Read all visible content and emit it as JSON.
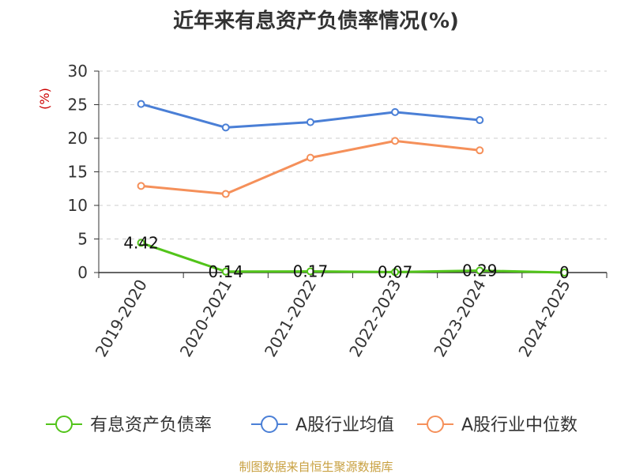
{
  "chart_data": {
    "type": "line",
    "title": "近年来有息资产负债率情况(%)",
    "ylabel": "(%)",
    "xlabel": "",
    "categories": [
      "2019-2020",
      "2020-2021",
      "2021-2022",
      "2022-2023",
      "2023-2024",
      "2024-2025"
    ],
    "ylim": [
      0,
      30
    ],
    "yticks": [
      0,
      5,
      10,
      15,
      20,
      25,
      30
    ],
    "grid": true,
    "legend_position": "bottom",
    "series": [
      {
        "name": "有息资产负债率",
        "color": "#52c41a",
        "values": [
          4.42,
          0.14,
          0.17,
          0.07,
          0.29,
          0
        ],
        "labels": [
          "4.42",
          "0.14",
          "0.17",
          "0.07",
          "0.29",
          "0"
        ]
      },
      {
        "name": "A股行业均值",
        "color": "#4a7fd6",
        "values": [
          25.1,
          21.6,
          22.4,
          23.9,
          22.7,
          null
        ]
      },
      {
        "name": "A股行业中位数",
        "color": "#f5905a",
        "values": [
          12.9,
          11.7,
          17.1,
          19.6,
          18.2,
          null
        ]
      }
    ]
  },
  "footer": {
    "source": "制图数据来自恒生聚源数据库",
    "source_color": "#c8a040"
  },
  "colors": {
    "axis": "#333333",
    "grid": "#cccccc",
    "ylabel": "#cc0000",
    "title": "#333333"
  }
}
